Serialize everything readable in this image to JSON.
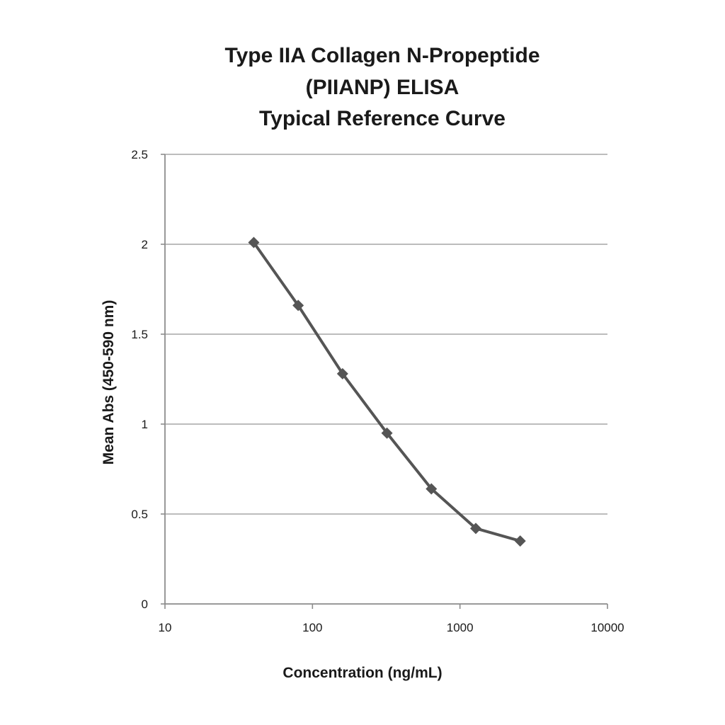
{
  "chart_data": {
    "type": "line",
    "title_lines": [
      "Type IIA Collagen N-Propeptide",
      "(PIIANP) ELISA",
      "Typical Reference Curve"
    ],
    "xlabel": "Concentration (ng/mL)",
    "ylabel": "Mean Abs (450-590 nm)",
    "xscale": "log",
    "xlim": [
      10,
      10000
    ],
    "ylim": [
      0,
      2.5
    ],
    "xticks": [
      10,
      100,
      1000,
      10000
    ],
    "xtick_labels": [
      "10",
      "100",
      "1000",
      "10000"
    ],
    "yticks": [
      0,
      0.5,
      1,
      1.5,
      2,
      2.5
    ],
    "ytick_labels": [
      "0",
      "0.5",
      "1",
      "1.5",
      "2",
      "2.5"
    ],
    "grid": "horizontal",
    "legend": "none",
    "series": [
      {
        "x": [
          40,
          80,
          160,
          320,
          640,
          1280,
          2560
        ],
        "y": [
          2.01,
          1.66,
          1.28,
          0.95,
          0.64,
          0.42,
          0.35
        ],
        "color": "#555555",
        "marker": "diamond"
      }
    ]
  }
}
